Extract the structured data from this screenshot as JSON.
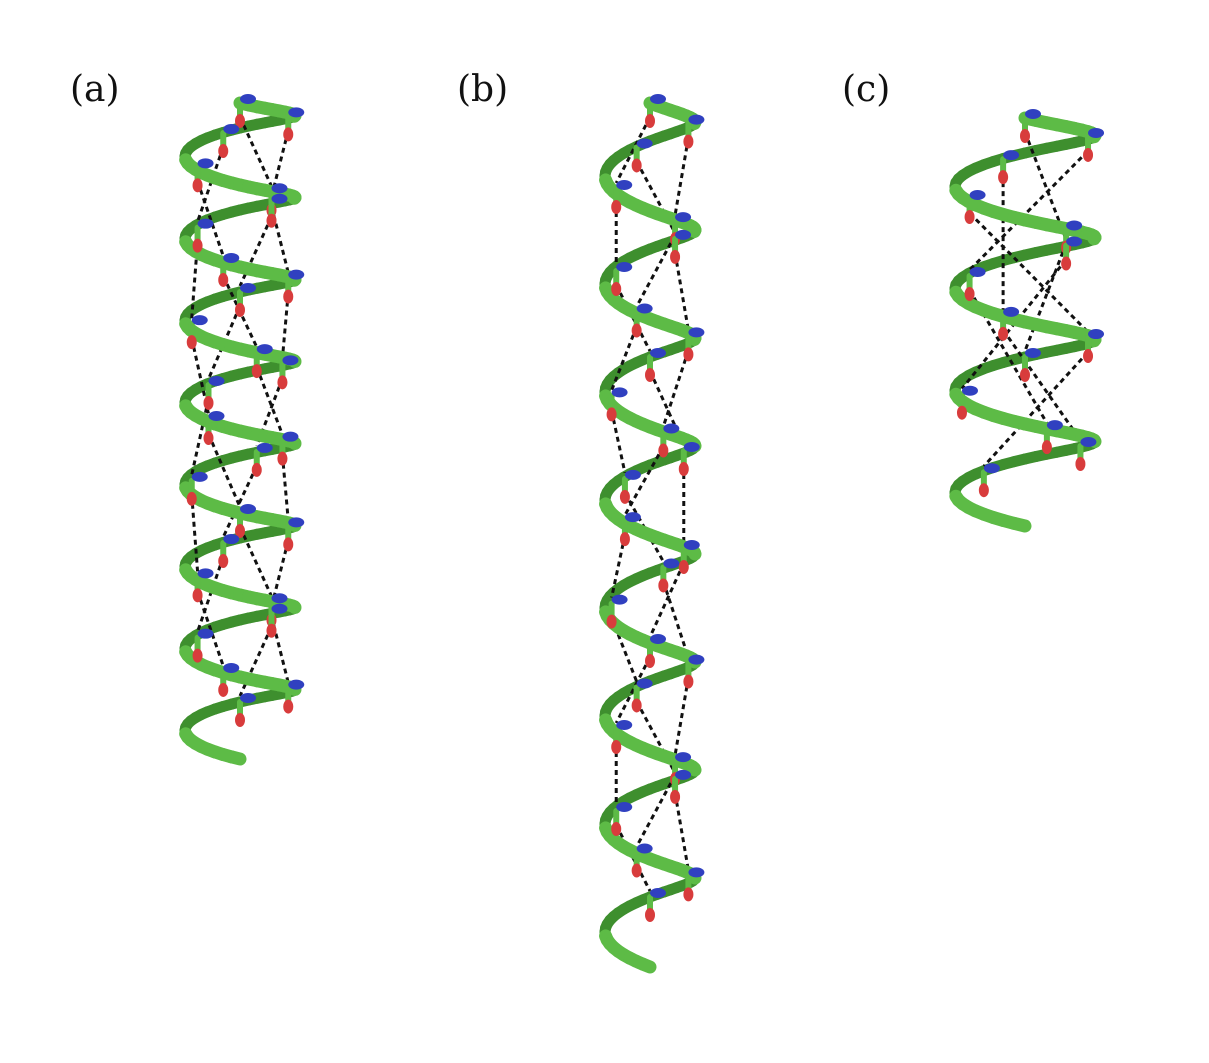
{
  "figure": {
    "panels": [
      {
        "id": "a",
        "label": "(a)",
        "turns": 8,
        "style": "alpha-helix"
      },
      {
        "id": "b",
        "label": "(b)",
        "turns": 8,
        "style": "3-10-helix"
      },
      {
        "id": "c",
        "label": "(c)",
        "turns": 4,
        "style": "pi-helix"
      }
    ]
  },
  "colors": {
    "backbone": "#5dbb46",
    "backbone_dark": "#3e8f2e",
    "nitrogen": "#3040c0",
    "oxygen": "#d83c3c",
    "hbond": "#111111",
    "label": "#111111"
  }
}
